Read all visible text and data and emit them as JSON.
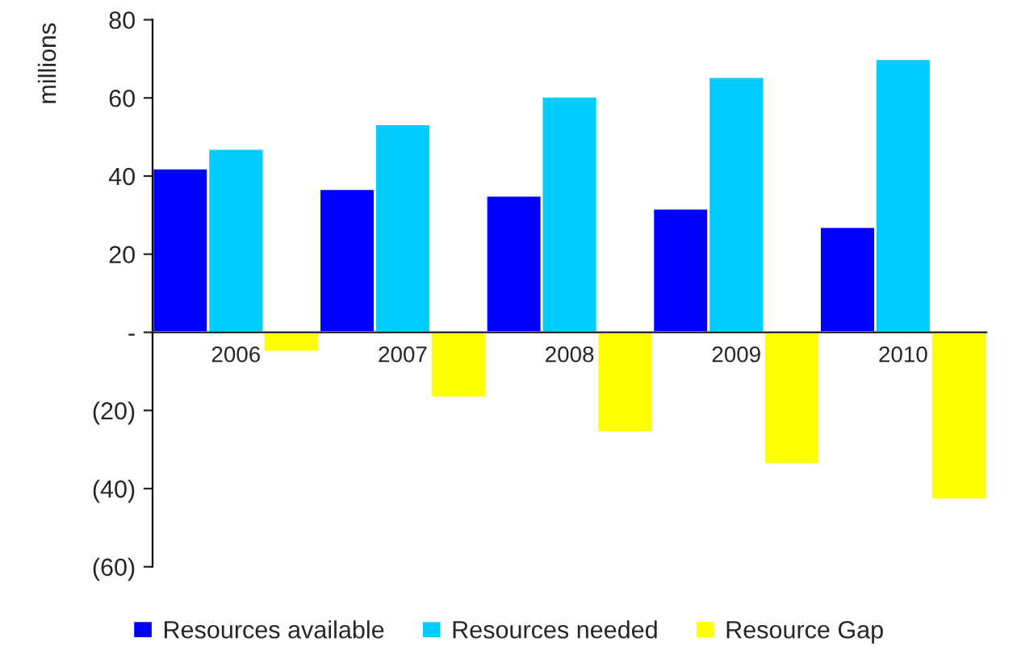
{
  "chart_data": {
    "type": "bar",
    "ylabel": "millions",
    "categories": [
      "2006",
      "2007",
      "2008",
      "2009",
      "2010"
    ],
    "series": [
      {
        "name": "Resources available",
        "color": "#0000ff",
        "values": [
          42,
          36.7,
          35,
          31.7,
          27
        ]
      },
      {
        "name": "Resources needed",
        "color": "#00ccff",
        "values": [
          47,
          53.3,
          60.4,
          65.4,
          70
        ]
      },
      {
        "name": "Resource Gap",
        "color": "#ffff00",
        "values": [
          -5,
          -16.7,
          -25.6,
          -33.8,
          -42.8
        ]
      }
    ],
    "ylim": [
      -60,
      80
    ],
    "yticks": [
      {
        "value": -60,
        "label": "(60)"
      },
      {
        "value": -40,
        "label": "(40)"
      },
      {
        "value": -20,
        "label": "(20)"
      },
      {
        "value": 0,
        "label": "-"
      },
      20,
      40,
      60,
      80
    ],
    "legend": "bottom",
    "grid": false
  }
}
